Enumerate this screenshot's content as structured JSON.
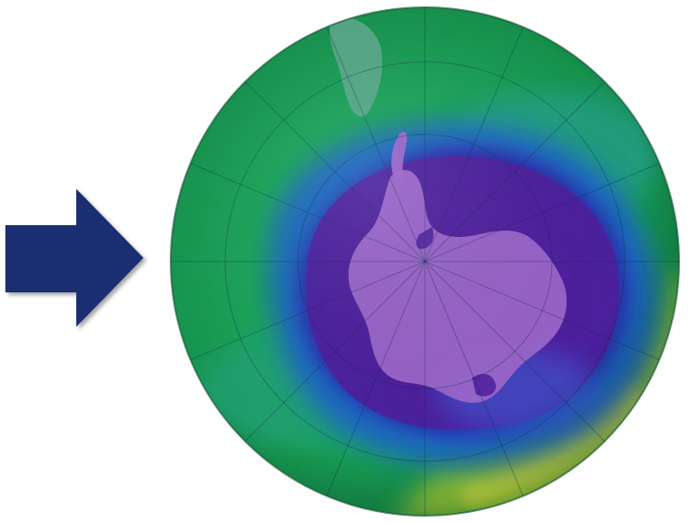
{
  "scene": {
    "subject": "ozone-hole-map",
    "arrow_icon": "right-arrow-icon",
    "colors": {
      "arrow": "#1b2f72",
      "background": "#ffffff",
      "ozone_high": "#c8e03a",
      "ozone_mid": "#1fa85a",
      "ozone_low_edge": "#1b3fa8",
      "ozone_hole": "#5a2aa0",
      "land": "#9a66c8"
    }
  }
}
